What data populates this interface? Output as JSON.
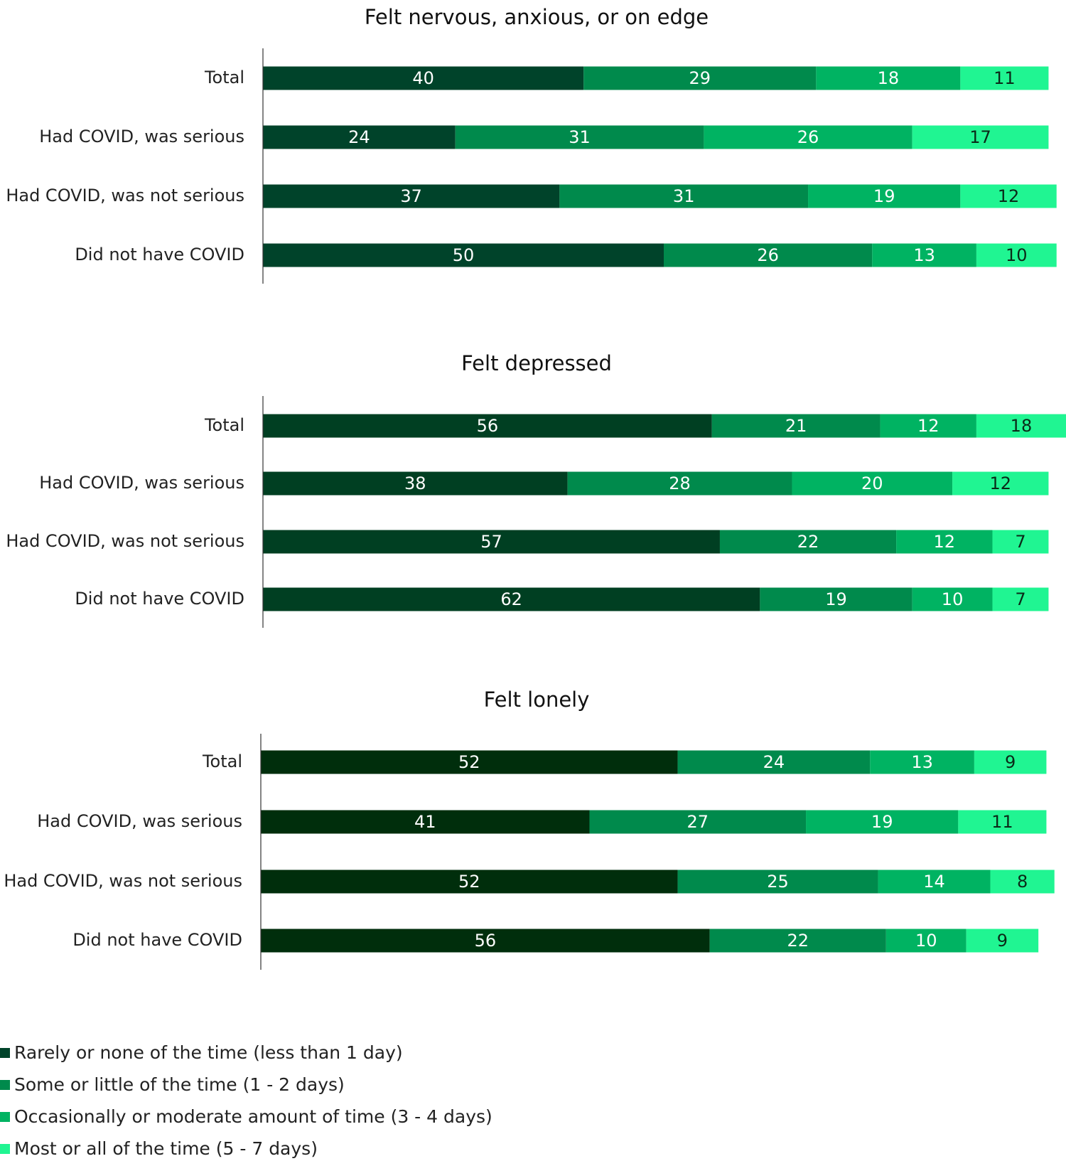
{
  "chart_data": [
    {
      "type": "bar",
      "orientation": "horizontal",
      "stacked": true,
      "title": "Felt nervous, anxious, or on edge",
      "categories": [
        "Total",
        "Had COVID, was serious",
        "Had COVID, was not serious",
        "Did not have COVID"
      ],
      "series": [
        {
          "name": "Rarely or none of the time (less than 1 day)",
          "values": [
            40,
            24,
            37,
            50
          ]
        },
        {
          "name": "Some or little of the time (1 - 2 days)",
          "values": [
            29,
            31,
            31,
            26
          ]
        },
        {
          "name": "Occasionally or moderate amount of time (3 - 4 days)",
          "values": [
            18,
            26,
            19,
            13
          ]
        },
        {
          "name": "Most or all of the time (5 - 7 days)",
          "values": [
            11,
            17,
            12,
            10
          ]
        }
      ],
      "colors": [
        "#00432a",
        "#008a4c",
        "#00b362",
        "#20f592"
      ]
    },
    {
      "type": "bar",
      "orientation": "horizontal",
      "stacked": true,
      "title": "Felt depressed",
      "categories": [
        "Total",
        "Had COVID, was serious",
        "Had COVID, was not serious",
        "Did not have COVID"
      ],
      "series": [
        {
          "name": "Rarely or none of the time (less than 1 day)",
          "values": [
            56,
            38,
            57,
            62
          ]
        },
        {
          "name": "Some or little of the time (1 - 2 days)",
          "values": [
            21,
            28,
            22,
            19
          ]
        },
        {
          "name": "Occasionally or moderate amount of time (3 - 4 days)",
          "values": [
            12,
            20,
            12,
            10
          ]
        },
        {
          "name": "Most or all of the time (5 - 7 days)",
          "values": [
            18,
            12,
            7,
            7
          ]
        }
      ],
      "colors": [
        "#003f22",
        "#008a4c",
        "#00b362",
        "#20f592"
      ]
    },
    {
      "type": "bar",
      "orientation": "horizontal",
      "stacked": true,
      "title": "Felt lonely",
      "categories": [
        "Total",
        "Had COVID, was serious",
        "Had COVID, was not serious",
        "Did not have COVID"
      ],
      "series": [
        {
          "name": "Rarely or none of the time (less than 1 day)",
          "values": [
            52,
            41,
            52,
            56
          ]
        },
        {
          "name": "Some or little of the time (1 - 2 days)",
          "values": [
            24,
            27,
            25,
            22
          ]
        },
        {
          "name": "Occasionally or moderate amount of time (3 - 4 days)",
          "values": [
            13,
            19,
            14,
            10
          ]
        },
        {
          "name": "Most or all of the time (5 - 7 days)",
          "values": [
            9,
            11,
            8,
            9
          ]
        }
      ],
      "colors": [
        "#002e0c",
        "#008a4c",
        "#00b362",
        "#20f592"
      ]
    }
  ],
  "legend": {
    "placement": "bottom-left",
    "items": [
      {
        "label": "Rarely or none of the time (less than 1 day)",
        "color": "#00432a"
      },
      {
        "label": "Some or little of the time (1 - 2 days)",
        "color": "#008a4c"
      },
      {
        "label": "Occasionally or moderate amount of time (3 - 4 days)",
        "color": "#00b362"
      },
      {
        "label": "Most or all of the time (5 - 7 days)",
        "color": "#20f592"
      }
    ]
  }
}
